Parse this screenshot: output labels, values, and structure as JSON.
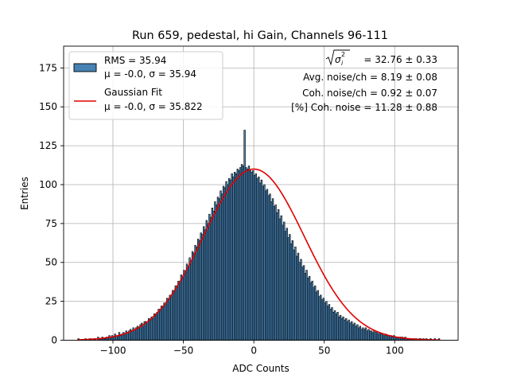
{
  "chart_data": {
    "type": "bar",
    "title": "Run 659, pedestal, hi Gain, Channels 96-111",
    "xlabel": "ADC Counts",
    "ylabel": "Entries",
    "xlim": [
      -135,
      145
    ],
    "ylim": [
      0,
      189
    ],
    "xticks": [
      -100,
      -50,
      0,
      50,
      100
    ],
    "yticks": [
      0,
      25,
      50,
      75,
      100,
      125,
      150,
      175
    ],
    "xtick_labels": [
      "−100",
      "−50",
      "0",
      "50",
      "100"
    ],
    "ytick_labels": [
      "0",
      "25",
      "50",
      "75",
      "100",
      "125",
      "150",
      "175"
    ],
    "grid": true,
    "bin_width": 1,
    "x_start": -125,
    "values": [
      1,
      0,
      0,
      0,
      0,
      1,
      0,
      0,
      1,
      1,
      0,
      1,
      1,
      0,
      2,
      1,
      1,
      2,
      1,
      1,
      2,
      2,
      3,
      2,
      3,
      2,
      4,
      3,
      3,
      5,
      3,
      4,
      5,
      4,
      6,
      5,
      6,
      7,
      6,
      8,
      7,
      8,
      9,
      8,
      10,
      11,
      9,
      12,
      12,
      11,
      14,
      13,
      15,
      14,
      17,
      16,
      18,
      20,
      19,
      22,
      21,
      24,
      23,
      27,
      26,
      29,
      28,
      32,
      31,
      35,
      34,
      38,
      37,
      42,
      40,
      45,
      44,
      49,
      47,
      53,
      51,
      57,
      56,
      61,
      60,
      65,
      64,
      69,
      68,
      73,
      71,
      77,
      75,
      81,
      79,
      85,
      83,
      89,
      87,
      92,
      91,
      96,
      94,
      99,
      98,
      102,
      100,
      104,
      103,
      107,
      105,
      108,
      107,
      110,
      109,
      111,
      113,
      112,
      135,
      111,
      110,
      112,
      109,
      108,
      109,
      106,
      107,
      104,
      105,
      101,
      103,
      99,
      100,
      96,
      97,
      93,
      94,
      89,
      91,
      86,
      87,
      82,
      84,
      78,
      80,
      74,
      76,
      70,
      72,
      66,
      68,
      62,
      64,
      58,
      60,
      54,
      56,
      50,
      52,
      47,
      48,
      43,
      45,
      40,
      41,
      37,
      38,
      34,
      35,
      31,
      32,
      28,
      29,
      26,
      27,
      24,
      25,
      22,
      23,
      20,
      21,
      18,
      19,
      17,
      18,
      15,
      16,
      14,
      15,
      13,
      14,
      12,
      13,
      11,
      12,
      10,
      11,
      9,
      10,
      8,
      9,
      7,
      8,
      7,
      8,
      6,
      7,
      6,
      6,
      5,
      6,
      5,
      5,
      4,
      5,
      4,
      4,
      3,
      4,
      3,
      3,
      3,
      3,
      2,
      3,
      2,
      2,
      2,
      2,
      2,
      2,
      1,
      2,
      1,
      1,
      1,
      1,
      1,
      1,
      1,
      1,
      0,
      1,
      1,
      0,
      1,
      0,
      1,
      0,
      0,
      1,
      0,
      0,
      1,
      0,
      0,
      1
    ],
    "fit": {
      "mu": 0.0,
      "sigma": 35.822,
      "amplitude": 110
    },
    "legend_position": "upper-left",
    "legend": [
      {
        "type": "patch",
        "color": "#4682b4",
        "edge": "#000000",
        "line1": "RMS = 35.94",
        "line2": "μ = -0.0, σ = 35.94"
      },
      {
        "type": "line",
        "color": "#e00000",
        "line1": "Gaussian Fit",
        "line2": "μ = -0.0, σ = 35.822"
      }
    ],
    "annotations": {
      "sigma_label": "= 32.76 ± 0.33",
      "avg_noise": "Avg. noise/ch = 8.19 ± 0.08",
      "coh_noise": "Coh. noise/ch = 0.92 ± 0.07",
      "pct_coh_noise": "[%] Coh. noise = 11.28 ± 0.88"
    },
    "colors": {
      "bar": "#4682b4",
      "bar_edge": "#000000",
      "fit": "#e00000",
      "grid": "#b0b0b0"
    }
  }
}
